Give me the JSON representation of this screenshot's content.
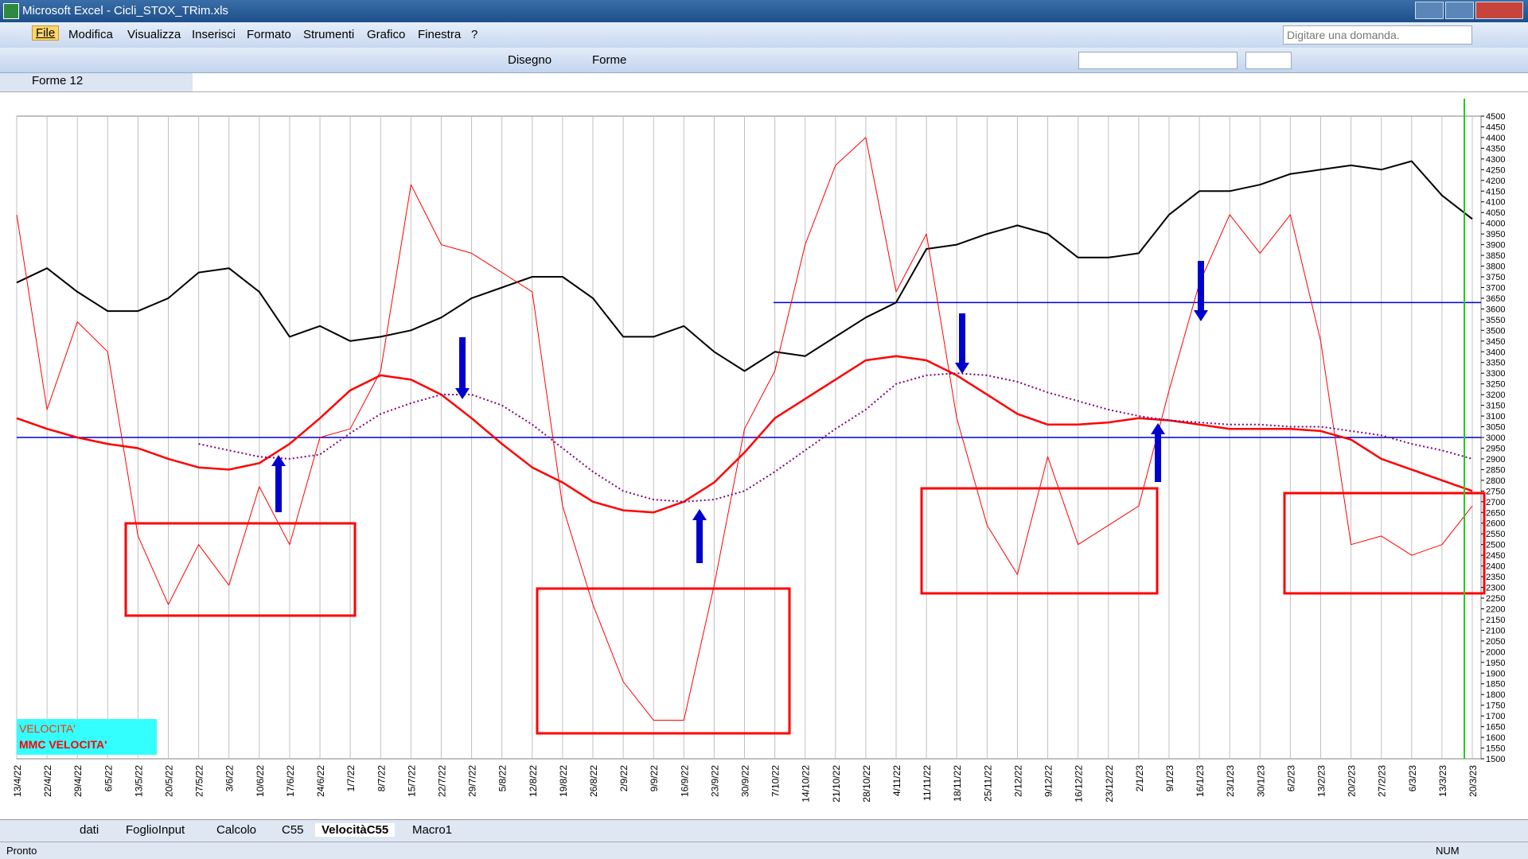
{
  "window": {
    "title": "Microsoft Excel - Cicli_STOX_TRim.xls"
  },
  "menu": [
    "File",
    "Modifica",
    "Visualizza",
    "Inserisci",
    "Formato",
    "Strumenti",
    "Grafico",
    "Finestra",
    "?"
  ],
  "help_box": "Digitare una domanda.",
  "toolbar": {
    "draw": "Disegno",
    "shapes": "Forme"
  },
  "name_box": "Forme 12",
  "sheet_tabs": [
    "dati",
    "FoglioInput",
    "Calcolo",
    "C55",
    "VelocitàC55",
    "Macro1"
  ],
  "active_tab": 4,
  "status": {
    "left": "Pronto",
    "num": "NUM"
  },
  "chart_data": {
    "type": "line",
    "categories": [
      "13/4/22",
      "22/4/22",
      "29/4/22",
      "6/5/22",
      "13/5/22",
      "20/5/22",
      "27/5/22",
      "3/6/22",
      "10/6/22",
      "17/6/22",
      "24/6/22",
      "1/7/22",
      "8/7/22",
      "15/7/22",
      "22/7/22",
      "29/7/22",
      "5/8/22",
      "12/8/22",
      "19/8/22",
      "26/8/22",
      "2/9/22",
      "9/9/22",
      "16/9/22",
      "23/9/22",
      "30/9/22",
      "7/10/22",
      "14/10/22",
      "21/10/22",
      "28/10/22",
      "4/11/22",
      "11/11/22",
      "18/11/22",
      "25/11/22",
      "2/12/22",
      "9/12/22",
      "16/12/22",
      "23/12/22",
      "2/1/23",
      "9/1/23",
      "16/1/23",
      "23/1/23",
      "30/1/23",
      "6/2/23",
      "13/2/23",
      "20/2/23",
      "27/2/23",
      "6/3/23",
      "13/3/23",
      "20/3/23"
    ],
    "series": [
      {
        "color": "#000000",
        "width": 2,
        "values": [
          3723,
          3790,
          3680,
          3590,
          3590,
          3650,
          3770,
          3790,
          3680,
          3470,
          3520,
          3450,
          3470,
          3500,
          3560,
          3650,
          3700,
          3750,
          3750,
          3650,
          3470,
          3470,
          3520,
          3400,
          3310,
          3400,
          3380,
          3470,
          3560,
          3630,
          3880,
          3900,
          3950,
          3990,
          3950,
          3840,
          3840,
          3860,
          4040,
          4150,
          4150,
          4180,
          4230,
          4250,
          4270,
          4250,
          4290,
          4130,
          4020
        ]
      },
      {
        "name": "VELOCITA'",
        "color": "#ff0000",
        "width": 1,
        "values": [
          4040,
          3130,
          3540,
          3400,
          2540,
          2220,
          2500,
          2310,
          2770,
          2500,
          3000,
          3040,
          3310,
          4180,
          3900,
          3860,
          3770,
          3680,
          2680,
          2220,
          1860,
          1680,
          1680,
          2310,
          3040,
          3310,
          3900,
          4270,
          4400,
          3680,
          3950,
          3090,
          2590,
          2360,
          2910,
          2500,
          2590,
          2680,
          3220,
          3720,
          4040,
          3860,
          4040,
          3450,
          2500,
          2540,
          2450,
          2500,
          2680
        ]
      },
      {
        "name": "MMC VELOCITA'",
        "color": "#ff0000",
        "width": 2.5,
        "values": [
          3090,
          3040,
          3000,
          2970,
          2950,
          2900,
          2860,
          2850,
          2880,
          2970,
          3090,
          3220,
          3290,
          3270,
          3200,
          3090,
          2970,
          2860,
          2790,
          2700,
          2660,
          2650,
          2700,
          2790,
          2930,
          3090,
          3180,
          3270,
          3360,
          3380,
          3360,
          3290,
          3200,
          3110,
          3060,
          3060,
          3070,
          3090,
          3080,
          3060,
          3040,
          3040,
          3040,
          3030,
          2990,
          2900,
          2850,
          2800,
          2750
        ]
      },
      {
        "color": "#800080",
        "width": 2,
        "dash": "dotted",
        "values": [
          null,
          null,
          null,
          null,
          null,
          null,
          2970,
          2940,
          2910,
          2900,
          2920,
          3020,
          3110,
          3160,
          3200,
          3200,
          3150,
          3060,
          2950,
          2840,
          2750,
          2710,
          2700,
          2710,
          2750,
          2840,
          2940,
          3040,
          3130,
          3250,
          3290,
          3300,
          3290,
          3260,
          3210,
          3170,
          3130,
          3100,
          3080,
          3070,
          3060,
          3060,
          3050,
          3050,
          3030,
          3010,
          2970,
          2940,
          2900
        ]
      }
    ],
    "ylim": [
      1500,
      4500
    ],
    "yticks": [
      1500,
      1550,
      1600,
      1650,
      1700,
      1750,
      1800,
      1850,
      1900,
      1950,
      2000,
      2050,
      2100,
      2150,
      2200,
      2250,
      2300,
      2350,
      2400,
      2450,
      2500,
      2550,
      2600,
      2650,
      2700,
      2750,
      2800,
      2850,
      2900,
      2950,
      3000,
      3050,
      3100,
      3150,
      3200,
      3250,
      3300,
      3350,
      3400,
      3450,
      3500,
      3550,
      3600,
      3650,
      3700,
      3750,
      3800,
      3850,
      3900,
      3950,
      4000,
      4050,
      4100,
      4150,
      4200,
      4250,
      4300,
      4350,
      4400,
      4450,
      4500
    ],
    "hlines": [
      {
        "value": 3000,
        "color": "#0000cc"
      },
      {
        "value": 3630,
        "color": "#0000cc"
      }
    ],
    "grid": "x"
  }
}
